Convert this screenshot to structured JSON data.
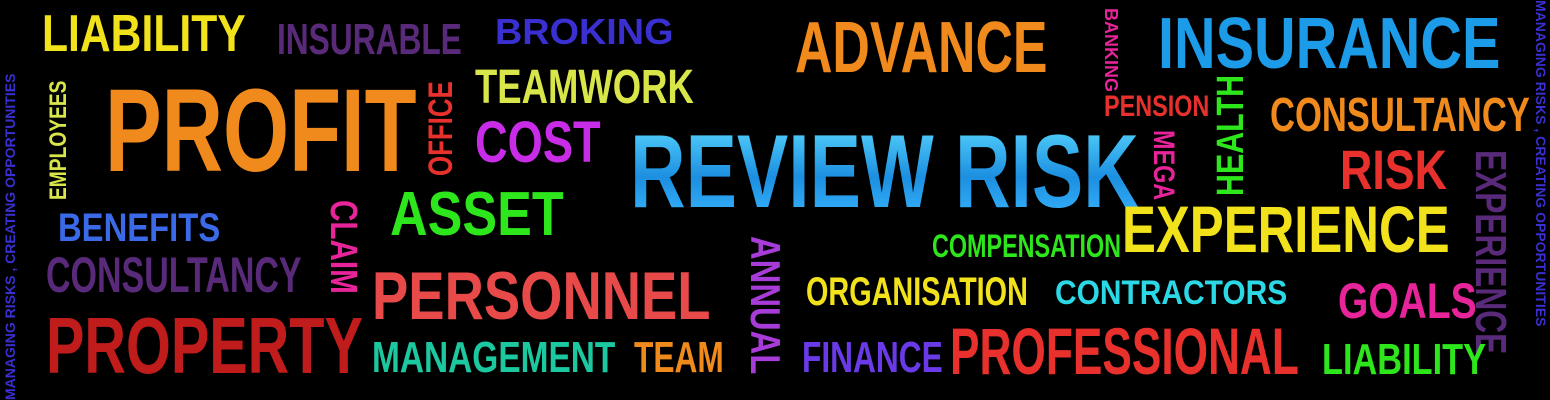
{
  "words": {
    "liability1": "LIABILITY",
    "insurable": "INSURABLE",
    "broking": "BROKING",
    "advance": "ADVANCE",
    "banking": "BANKING",
    "insurance": "INSURANCE",
    "employees": "EMPLOYEES",
    "profit": "PROFIT",
    "office": "OFFICE",
    "teamwork": "TEAMWORK",
    "pension": "PENSION",
    "health": "HEALTH",
    "consultancy1": "CONSULTANCY",
    "cost": "COST",
    "review_risk": "REVIEW RISK",
    "mega": "MEGA",
    "risk": "RISK",
    "experience_vert": "EXPERIENCE",
    "benefits": "BENEFITS",
    "claim": "CLAIM",
    "asset": "ASSET",
    "experience": "EXPERIENCE",
    "compensation": "COMPENSATION",
    "consultancy2": "CONSULTANCY",
    "annual": "ANNUAL",
    "personnel": "PERSONNEL",
    "organisation": "ORGANISATION",
    "contractors": "CONTRACTORS",
    "goals": "GOALS",
    "property": "PROPERTY",
    "management": "MANAGEMENT",
    "team": "TEAM",
    "finance": "FINANCE",
    "professional": "PROFESSIONAL",
    "liability2": "LIABILITY",
    "side_tagline_left": "MANAGING RISKS , CREATING OPPORTUNITIES",
    "side_tagline_right": "MANAGING RISKS , CREATING OPPORTUNITIES"
  },
  "colors": {
    "background": "#000000",
    "yellow": "#f2e21c",
    "purple": "#5a2a7a",
    "blue": "#3a2fd0",
    "orange": "#f08a1c",
    "pink": "#e8249a",
    "sky": "#1c9be8",
    "lime": "#d8e64a",
    "magenta": "#c82ce6",
    "red": "#e8312c",
    "green": "#2ee61c",
    "teal": "#1cc8a0",
    "cyan": "#2ad8e6",
    "darkred": "#c01c1c",
    "violet": "#a83cd8"
  }
}
